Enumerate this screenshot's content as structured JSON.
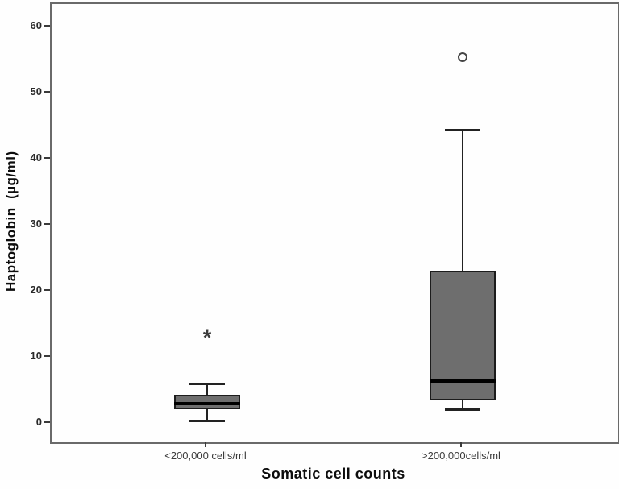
{
  "chart_data": {
    "type": "boxplot",
    "title": "",
    "xlabel": "Somatic cell counts",
    "ylabel": "Haptoglobin  (µg/ml)",
    "yticks": [
      0,
      10,
      20,
      30,
      40,
      50,
      60
    ],
    "ylim": [
      -2.8,
      63.5
    ],
    "grid": false,
    "legend": "none",
    "categories": [
      "<200,000 cells/ml",
      ">200,000cells/ml"
    ],
    "boxes": [
      {
        "category": "<200,000 cells/ml",
        "whisker_low": 0.5,
        "q1": 2.2,
        "median": 3.0,
        "q3": 4.4,
        "whisker_high": 6.1,
        "outliers": [
          {
            "value": 13.7,
            "marker": "asterisk",
            "glyph": "*"
          }
        ]
      },
      {
        "category": ">200,000cells/ml",
        "whisker_low": 2.2,
        "q1": 3.5,
        "median": 6.5,
        "q3": 23.2,
        "whisker_high": 44.5,
        "outliers": [
          {
            "value": 55.5,
            "marker": "circle",
            "glyph": "○"
          }
        ]
      }
    ],
    "colors": {
      "box_fill": "#6e6e6e",
      "box_border": "#1c1c1c",
      "median": "#000000",
      "whisker": "#222222",
      "frame": "#6a6a6a",
      "tick_text": "#2a2a2a"
    }
  }
}
